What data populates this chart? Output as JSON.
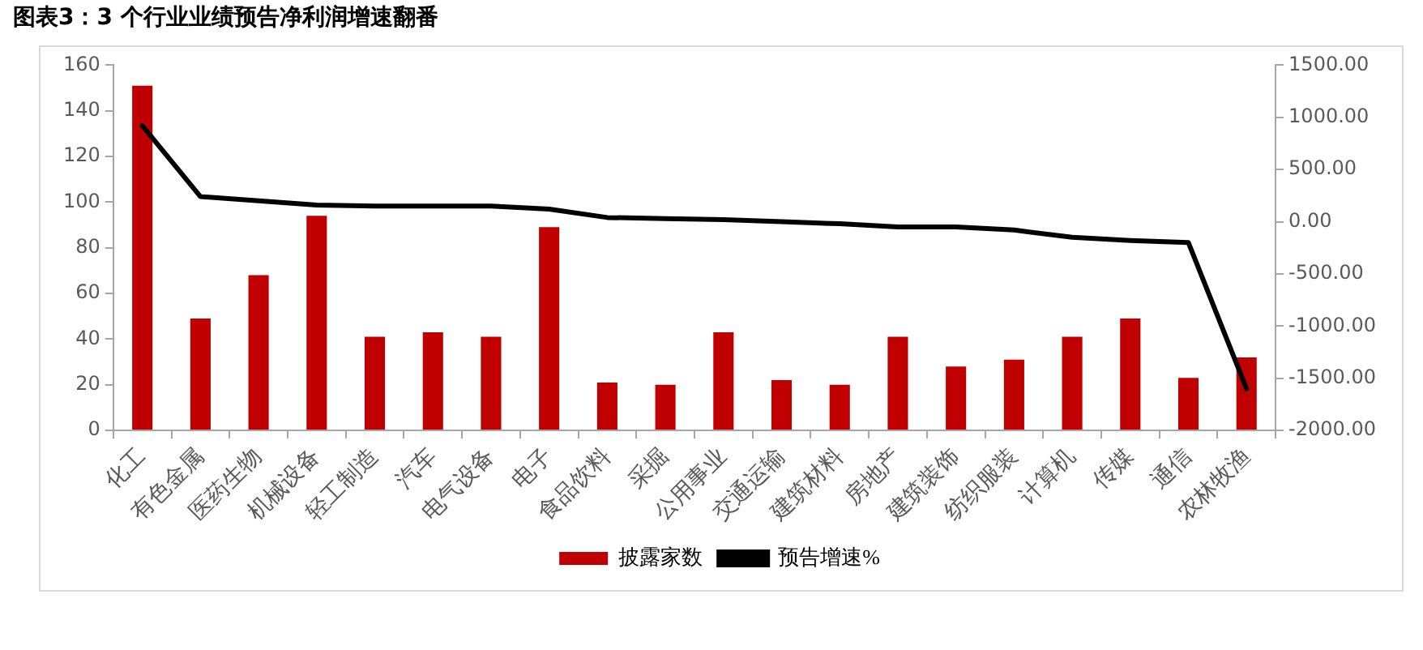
{
  "chart_data": {
    "type": "bar",
    "title": "图表3：3 个行业业绩预告净利润增速翻番",
    "categories": [
      "化工",
      "有色金属",
      "医药生物",
      "机械设备",
      "轻工制造",
      "汽车",
      "电气设备",
      "电子",
      "食品饮料",
      "采掘",
      "公用事业",
      "交通运输",
      "建筑材料",
      "房地产",
      "建筑装饰",
      "纺织服装",
      "计算机",
      "传媒",
      "通信",
      "农林牧渔"
    ],
    "series": [
      {
        "name": "披露家数",
        "color": "#c00000",
        "values": [
          151,
          49,
          68,
          94,
          41,
          43,
          41,
          89,
          21,
          20,
          43,
          22,
          20,
          41,
          28,
          31,
          41,
          49,
          23,
          32
        ]
      },
      {
        "name": "预告增速%",
        "type": "line",
        "axis": "y2",
        "color": "#000000",
        "values": [
          920,
          240,
          200,
          160,
          150,
          150,
          150,
          120,
          40,
          30,
          20,
          0,
          -20,
          -50,
          -50,
          -80,
          -150,
          -180,
          -200,
          -1600
        ]
      }
    ],
    "ylim": [
      0,
      160
    ],
    "yticks": [
      0,
      20,
      40,
      60,
      80,
      100,
      120,
      140,
      160
    ],
    "y2lim": [
      -2000,
      1500
    ],
    "y2ticks": [
      {
        "value": -2000,
        "label": "-2000.00"
      },
      {
        "value": -1500,
        "label": "-1500.00"
      },
      {
        "value": -1000,
        "label": "-1000.00"
      },
      {
        "value": -500,
        "label": "-500.00"
      },
      {
        "value": 0,
        "label": "0.00"
      },
      {
        "value": 500,
        "label": "500.00"
      },
      {
        "value": 1000,
        "label": "1000.00"
      },
      {
        "value": 1500,
        "label": "1500.00"
      }
    ],
    "grid": false,
    "legend": "bottom",
    "marker": "none",
    "line_style": "solid"
  }
}
